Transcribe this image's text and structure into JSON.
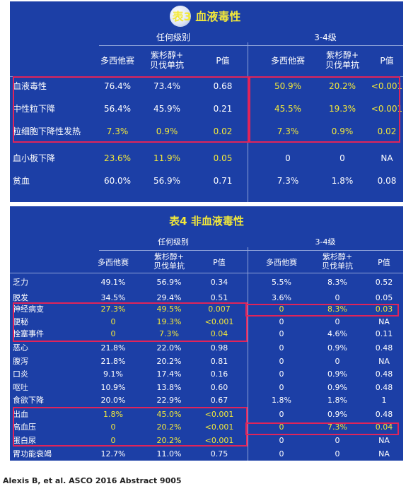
{
  "table1": {
    "title": "表3 血液毒性",
    "group_labels": [
      "任何级别",
      "3-4级"
    ],
    "col_headers": [
      [
        "多西他赛"
      ],
      [
        "紫杉醇+",
        "贝伐单抗"
      ],
      [
        "P值"
      ],
      [
        "多西他赛"
      ],
      [
        "紫杉醇+",
        "贝伐单抗"
      ],
      [
        "P值"
      ]
    ],
    "rows": [
      {
        "label": "血液毒性",
        "values": [
          "76.4%",
          "73.4%",
          "0.68",
          "50.9%",
          "20.2%",
          "<0.001"
        ],
        "yellow": [
          false,
          false,
          false,
          true,
          true,
          true
        ]
      },
      {
        "label": "中性粒下降",
        "values": [
          "56.4%",
          "45.9%",
          "0.21",
          "45.5%",
          "19.3%",
          "<0.001"
        ],
        "yellow": [
          false,
          false,
          false,
          true,
          true,
          true
        ]
      },
      {
        "label": "粒细胞下降性发热",
        "values": [
          "7.3%",
          "0.9%",
          "0.02",
          "7.3%",
          "0.9%",
          "0.02"
        ],
        "yellow": [
          true,
          true,
          true,
          true,
          true,
          true
        ]
      },
      {
        "label": "血小板下降",
        "values": [
          "23.6%",
          "11.9%",
          "0.05",
          "0",
          "0",
          "NA"
        ],
        "yellow": [
          true,
          true,
          true,
          false,
          false,
          false
        ]
      },
      {
        "label": "贫血",
        "values": [
          "60.0%",
          "56.9%",
          "0.71",
          "7.3%",
          "1.8%",
          "0.08"
        ],
        "yellow": [
          false,
          false,
          false,
          false,
          false,
          false
        ]
      }
    ]
  },
  "table2": {
    "title": "表4 非血液毒性",
    "group_labels": [
      "任何级别",
      "3-4级"
    ],
    "col_headers": [
      [
        "多西他赛"
      ],
      [
        "紫杉醇+",
        "贝伐单抗"
      ],
      [
        "P值"
      ],
      [
        "多西他赛"
      ],
      [
        "紫杉醇+",
        "贝伐单抗"
      ],
      [
        "P值"
      ]
    ],
    "rows": [
      {
        "label": "乏力",
        "values": [
          "49.1%",
          "56.9%",
          "0.34",
          "5.5%",
          "8.3%",
          "0.52"
        ],
        "yellow": [
          false,
          false,
          false,
          false,
          false,
          false
        ]
      },
      {
        "label": "脱发",
        "values": [
          "34.5%",
          "29.4%",
          "0.51",
          "3.6%",
          "0",
          "0.05"
        ],
        "yellow": [
          false,
          false,
          false,
          false,
          false,
          false
        ]
      },
      {
        "label": "神经病变",
        "values": [
          "27.3%",
          "49.5%",
          "0.007",
          "0",
          "8.3%",
          "0.03"
        ],
        "yellow": [
          true,
          true,
          true,
          true,
          true,
          true
        ]
      },
      {
        "label": "便秘",
        "values": [
          "0",
          "19.3%",
          "<0.001",
          "0",
          "0",
          "NA"
        ],
        "yellow": [
          true,
          true,
          true,
          false,
          false,
          false
        ]
      },
      {
        "label": "栓塞事件",
        "values": [
          "0",
          "7.3%",
          "0.04",
          "0",
          "4.6%",
          "0.11"
        ],
        "yellow": [
          true,
          true,
          true,
          false,
          false,
          false
        ]
      },
      {
        "label": "恶心",
        "values": [
          "21.8%",
          "22.0%",
          "0.98",
          "0",
          "0.9%",
          "0.48"
        ],
        "yellow": [
          false,
          false,
          false,
          false,
          false,
          false
        ]
      },
      {
        "label": "腹泻",
        "values": [
          "21.8%",
          "20.2%",
          "0.81",
          "0",
          "0",
          "NA"
        ],
        "yellow": [
          false,
          false,
          false,
          false,
          false,
          false
        ]
      },
      {
        "label": "口炎",
        "values": [
          "9.1%",
          "17.4%",
          "0.16",
          "0",
          "0.9%",
          "0.48"
        ],
        "yellow": [
          false,
          false,
          false,
          false,
          false,
          false
        ]
      },
      {
        "label": "呕吐",
        "values": [
          "10.9%",
          "13.8%",
          "0.60",
          "0",
          "0.9%",
          "0.48"
        ],
        "yellow": [
          false,
          false,
          false,
          false,
          false,
          false
        ]
      },
      {
        "label": "食欲下降",
        "values": [
          "20.0%",
          "22.9%",
          "0.67",
          "1.8%",
          "1.8%",
          "1"
        ],
        "yellow": [
          false,
          false,
          false,
          false,
          false,
          false
        ]
      },
      {
        "label": "出血",
        "values": [
          "1.8%",
          "45.0%",
          "<0.001",
          "0",
          "0.9%",
          "0.48"
        ],
        "yellow": [
          true,
          true,
          true,
          false,
          false,
          false
        ]
      },
      {
        "label": "高血压",
        "values": [
          "0",
          "20.2%",
          "<0.001",
          "0",
          "7.3%",
          "0.04"
        ],
        "yellow": [
          true,
          true,
          true,
          true,
          true,
          true
        ]
      },
      {
        "label": "蛋白尿",
        "values": [
          "0",
          "20.2%",
          "<0.001",
          "0",
          "0",
          "NA"
        ],
        "yellow": [
          true,
          true,
          true,
          false,
          false,
          false
        ]
      },
      {
        "label": "胃功能衰竭",
        "values": [
          "12.7%",
          "11.0%",
          "0.75",
          "0",
          "0",
          "NA"
        ],
        "yellow": [
          false,
          false,
          false,
          false,
          false,
          false
        ]
      }
    ]
  },
  "citation": "Alexis B, et al. ASCO 2016 Abstract 9005",
  "colors": {
    "panel": "#1c3fa6",
    "highlight_text": "#f2e83a",
    "box": "#e0245a"
  }
}
